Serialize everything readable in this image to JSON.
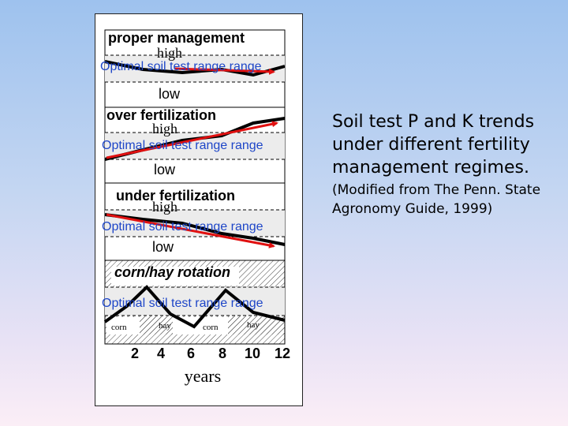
{
  "figure": {
    "panels": [
      {
        "title": "proper management",
        "high": "high",
        "optimal": "Optimal soil test range range",
        "low": "low"
      },
      {
        "title": "over fertilization",
        "high": "high",
        "optimal": "Optimal soil test range range",
        "low": "low"
      },
      {
        "title": "under fertilization",
        "high": "high",
        "optimal": "Optimal soil test range range",
        "low": "low"
      },
      {
        "title": "corn/hay rotation",
        "optimal": "Optimal soil test range range",
        "crops": [
          "corn",
          "hay",
          "corn",
          "hay"
        ]
      }
    ],
    "x_axis": {
      "ticks": [
        "2",
        "4",
        "6",
        "8",
        "10",
        "12"
      ],
      "label": "years"
    },
    "colors": {
      "trend_line": "#000000",
      "trend_arrow": "#e01010",
      "optimal_text": "#1e46c8",
      "band": "#ececec"
    }
  },
  "caption": {
    "main": "Soil test P and K trends under different fertility management regimes.",
    "sub": "(Modified from The Penn. State Agronomy Guide, 1999)"
  }
}
